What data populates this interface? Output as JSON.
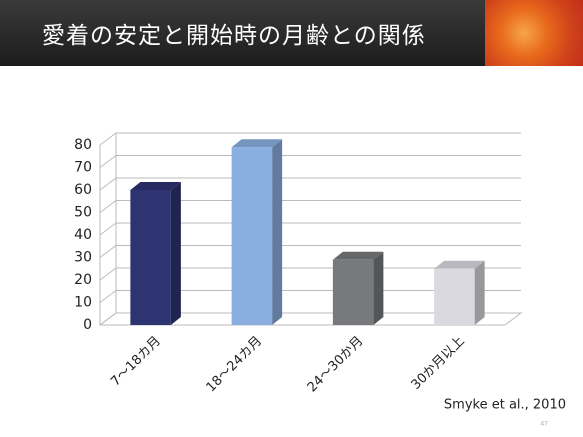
{
  "title": "愛着の安定と開始時の月齢との関係",
  "chart_data": {
    "type": "bar",
    "categories": [
      "7～18カ月",
      "18～24カ月",
      "24～30か月",
      "30か月以上"
    ],
    "values": [
      60,
      79,
      29,
      25
    ],
    "colors": [
      "#2e3372",
      "#8aaee0",
      "#77797c",
      "#d9d9df"
    ],
    "ylim": [
      0,
      80
    ],
    "yticks": [
      0,
      10,
      20,
      30,
      40,
      50,
      60,
      70,
      80
    ],
    "grid": true
  },
  "source": "Smyke et al., 2010",
  "page_number": "47"
}
